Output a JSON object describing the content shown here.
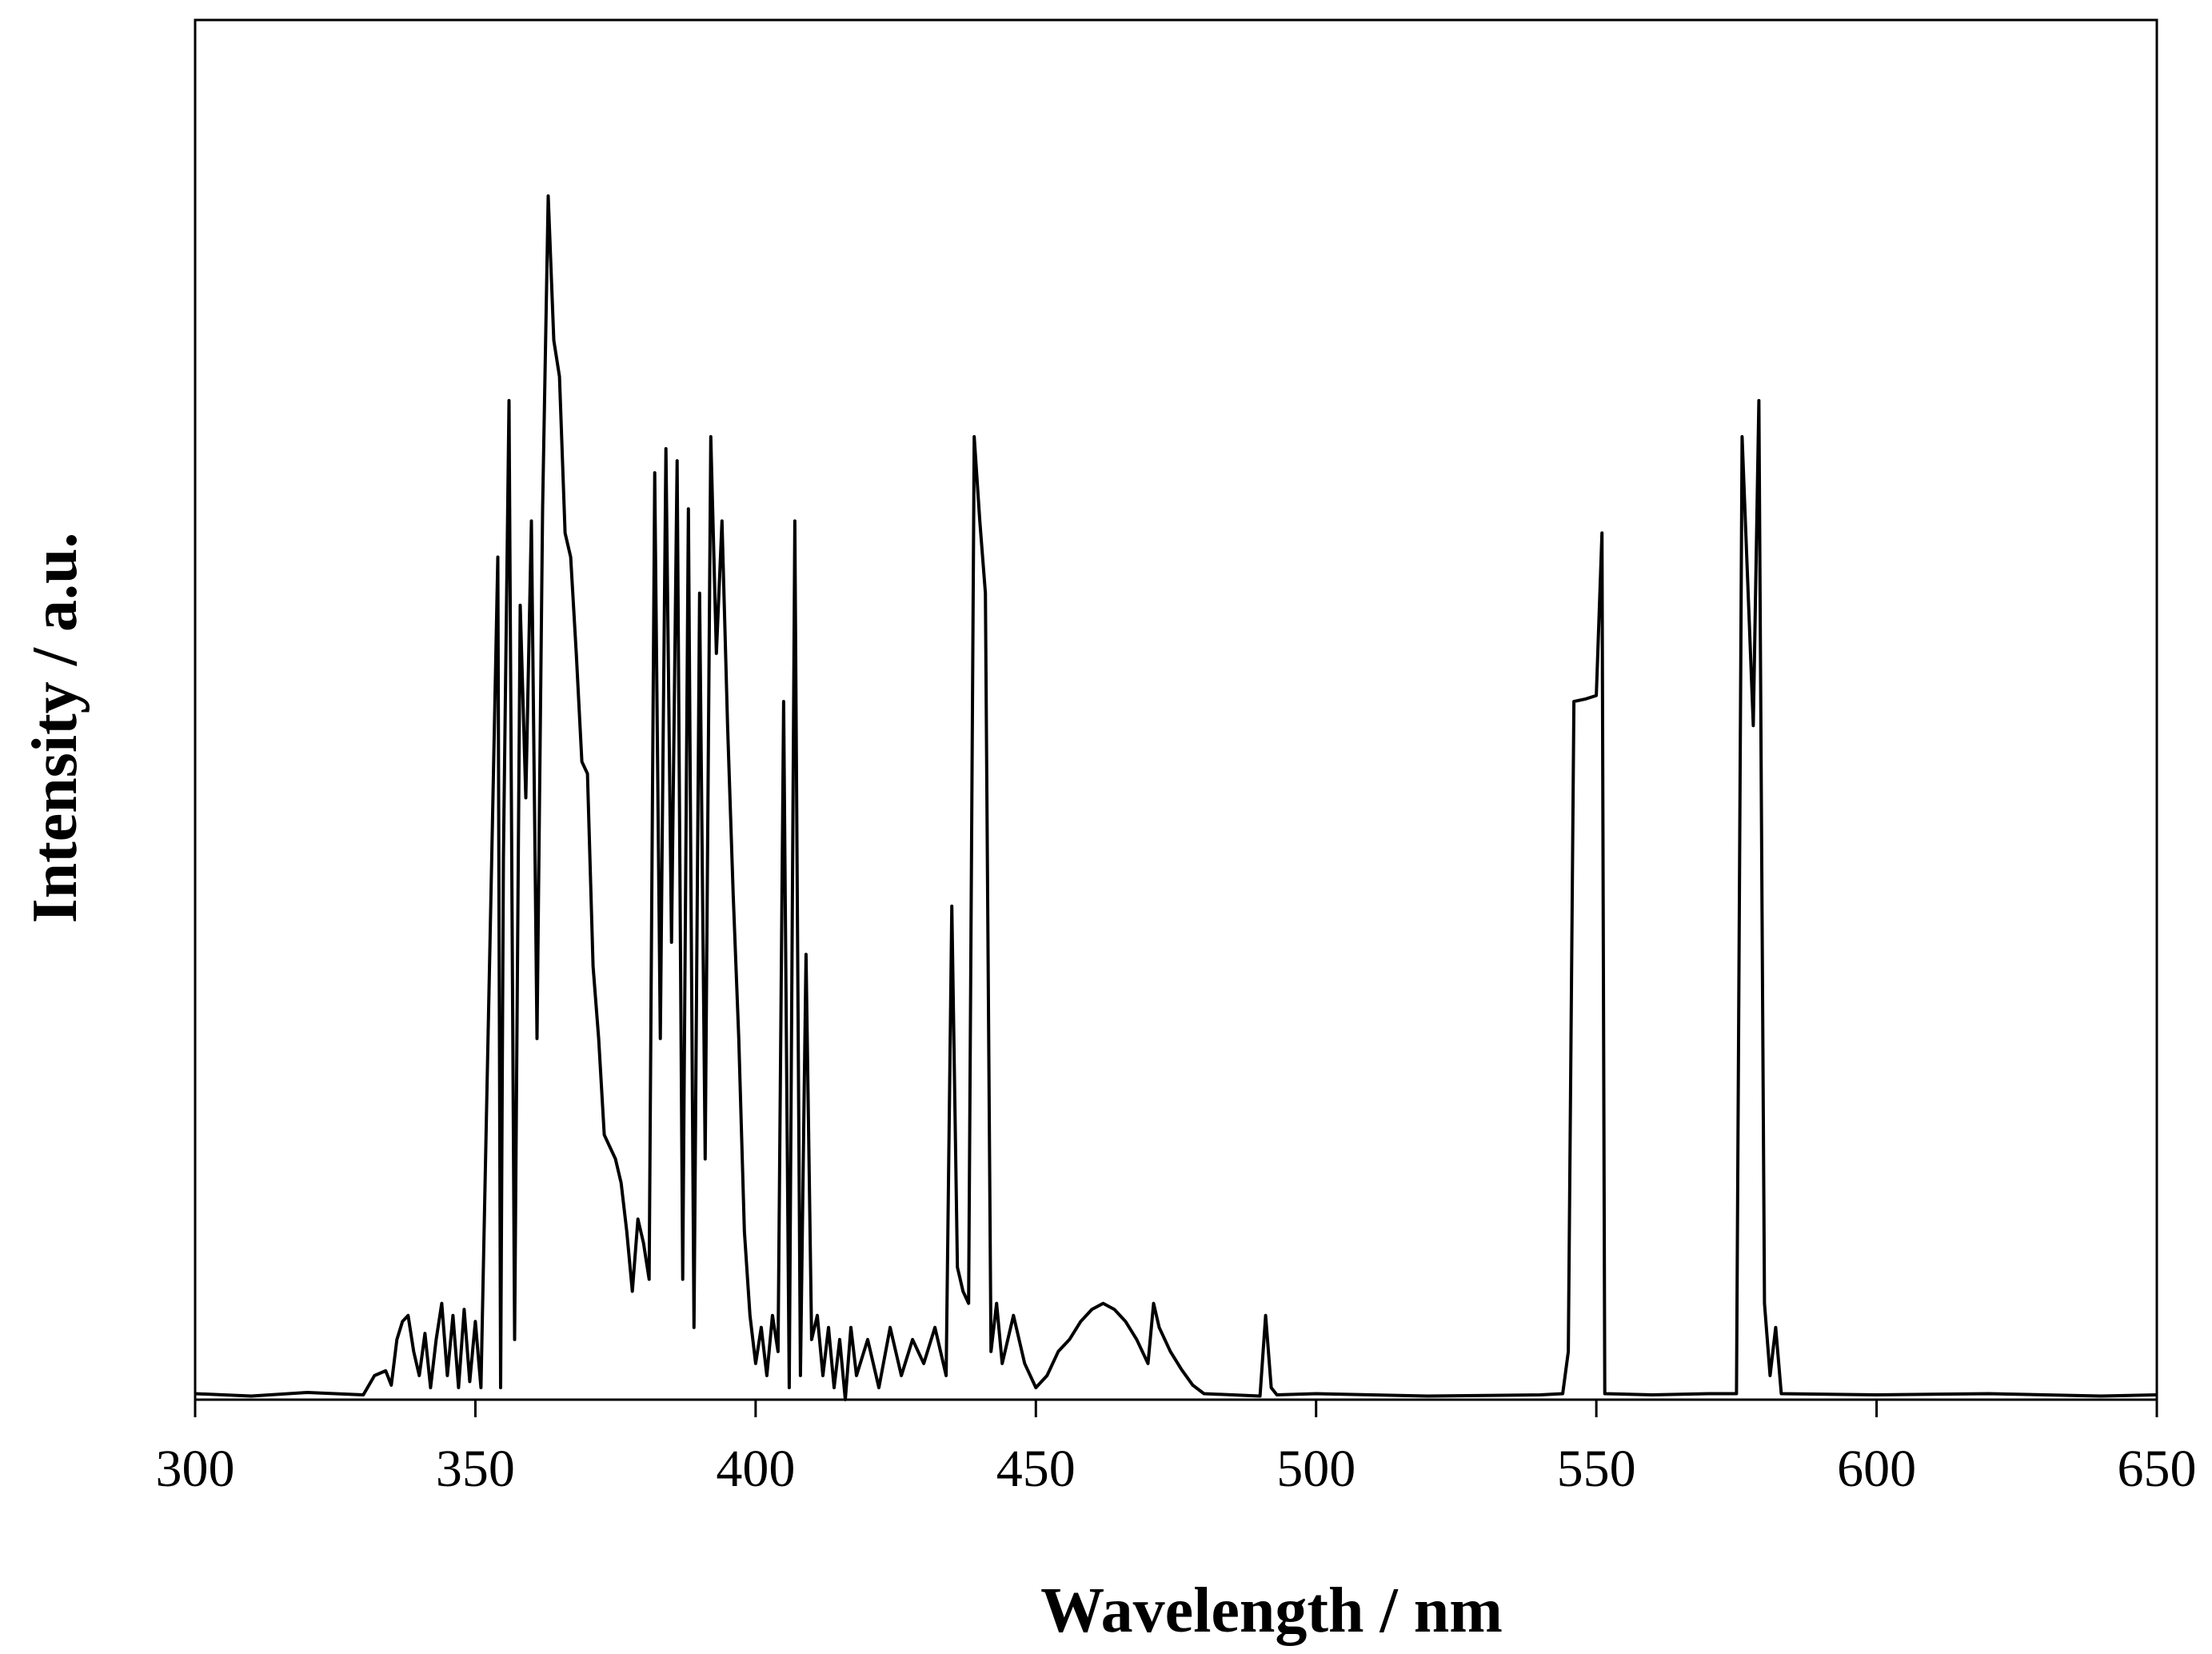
{
  "chart_data": {
    "type": "line",
    "title": "",
    "xlabel": "Wavelength / nm",
    "ylabel": "Intensity / a.u.",
    "xlim": [
      300,
      650
    ],
    "ylim": [
      0,
      100
    ],
    "x_ticks": [
      300,
      350,
      400,
      450,
      500,
      550,
      600,
      650
    ],
    "y_ticks_shown": false,
    "grid": false,
    "legend": "none",
    "line_color": "#000000",
    "series": [
      {
        "points": [
          [
            300,
            0.5
          ],
          [
            310,
            0.3
          ],
          [
            320,
            0.6
          ],
          [
            330,
            0.4
          ],
          [
            332,
            2
          ],
          [
            334,
            2.4
          ],
          [
            335,
            1.2
          ],
          [
            336,
            5
          ],
          [
            337,
            6.5
          ],
          [
            338,
            7
          ],
          [
            339,
            4
          ],
          [
            340,
            2
          ],
          [
            341,
            5.5
          ],
          [
            342,
            1
          ],
          [
            343,
            5
          ],
          [
            344,
            8
          ],
          [
            345,
            2
          ],
          [
            346,
            7
          ],
          [
            347,
            1
          ],
          [
            348,
            7.5
          ],
          [
            349,
            1.5
          ],
          [
            350,
            6.5
          ],
          [
            351,
            1
          ],
          [
            352,
            24
          ],
          [
            353,
            47
          ],
          [
            354,
            70
          ],
          [
            354.5,
            1
          ],
          [
            355,
            45
          ],
          [
            356,
            83
          ],
          [
            357,
            5
          ],
          [
            358,
            66
          ],
          [
            359,
            50
          ],
          [
            360,
            73
          ],
          [
            361,
            30
          ],
          [
            362,
            74
          ],
          [
            363,
            100
          ],
          [
            364,
            88
          ],
          [
            365,
            85
          ],
          [
            366,
            72
          ],
          [
            367,
            70
          ],
          [
            368,
            62
          ],
          [
            369,
            53
          ],
          [
            370,
            52
          ],
          [
            371,
            36
          ],
          [
            372,
            30
          ],
          [
            373,
            22
          ],
          [
            374,
            21
          ],
          [
            375,
            20
          ],
          [
            376,
            18
          ],
          [
            377,
            14
          ],
          [
            378,
            9
          ],
          [
            379,
            15
          ],
          [
            380,
            13
          ],
          [
            381,
            10
          ],
          [
            382,
            77
          ],
          [
            383,
            30
          ],
          [
            384,
            79
          ],
          [
            385,
            38
          ],
          [
            386,
            78
          ],
          [
            387,
            10
          ],
          [
            388,
            74
          ],
          [
            389,
            6
          ],
          [
            390,
            67
          ],
          [
            391,
            20
          ],
          [
            392,
            80
          ],
          [
            393,
            62
          ],
          [
            394,
            73
          ],
          [
            395,
            56
          ],
          [
            396,
            42
          ],
          [
            397,
            30
          ],
          [
            398,
            14
          ],
          [
            399,
            7
          ],
          [
            400,
            3
          ],
          [
            401,
            6
          ],
          [
            402,
            2
          ],
          [
            403,
            7
          ],
          [
            404,
            4
          ],
          [
            405,
            58
          ],
          [
            406,
            1
          ],
          [
            407,
            73
          ],
          [
            408,
            2
          ],
          [
            409,
            37
          ],
          [
            410,
            5
          ],
          [
            411,
            7
          ],
          [
            412,
            2
          ],
          [
            413,
            6
          ],
          [
            414,
            1
          ],
          [
            415,
            5
          ],
          [
            416,
            0
          ],
          [
            417,
            6
          ],
          [
            418,
            2
          ],
          [
            420,
            5
          ],
          [
            422,
            1
          ],
          [
            424,
            6
          ],
          [
            426,
            2
          ],
          [
            428,
            5
          ],
          [
            430,
            3
          ],
          [
            432,
            6
          ],
          [
            434,
            2
          ],
          [
            435,
            41
          ],
          [
            436,
            11
          ],
          [
            437,
            9
          ],
          [
            438,
            8
          ],
          [
            439,
            80
          ],
          [
            440,
            73
          ],
          [
            441,
            67
          ],
          [
            442,
            4
          ],
          [
            443,
            8
          ],
          [
            444,
            3
          ],
          [
            446,
            7
          ],
          [
            448,
            3
          ],
          [
            450,
            1
          ],
          [
            452,
            2
          ],
          [
            454,
            4
          ],
          [
            456,
            5
          ],
          [
            458,
            6.5
          ],
          [
            460,
            7.5
          ],
          [
            462,
            8
          ],
          [
            464,
            7.5
          ],
          [
            466,
            6.5
          ],
          [
            468,
            5
          ],
          [
            470,
            3
          ],
          [
            471,
            8
          ],
          [
            472,
            6
          ],
          [
            474,
            4
          ],
          [
            476,
            2.5
          ],
          [
            478,
            1.2
          ],
          [
            480,
            0.5
          ],
          [
            490,
            0.3
          ],
          [
            491,
            7
          ],
          [
            492,
            1
          ],
          [
            493,
            0.4
          ],
          [
            500,
            0.5
          ],
          [
            520,
            0.3
          ],
          [
            540,
            0.4
          ],
          [
            544,
            0.5
          ],
          [
            545,
            4
          ],
          [
            546,
            58
          ],
          [
            548,
            58.2
          ],
          [
            550,
            58.5
          ],
          [
            551,
            72
          ],
          [
            551.5,
            0.5
          ],
          [
            560,
            0.4
          ],
          [
            570,
            0.5
          ],
          [
            575,
            0.5
          ],
          [
            576,
            80
          ],
          [
            577,
            68
          ],
          [
            578,
            56
          ],
          [
            579,
            83
          ],
          [
            580,
            8
          ],
          [
            581,
            2
          ],
          [
            582,
            6
          ],
          [
            583,
            0.5
          ],
          [
            600,
            0.4
          ],
          [
            620,
            0.5
          ],
          [
            640,
            0.3
          ],
          [
            650,
            0.4
          ]
        ]
      }
    ]
  }
}
